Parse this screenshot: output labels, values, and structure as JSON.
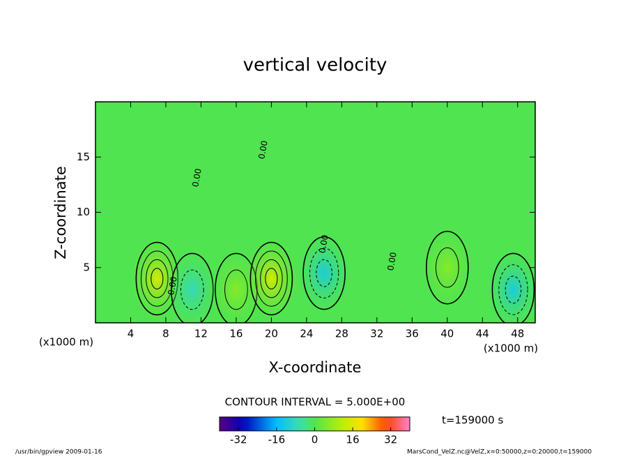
{
  "chart_data": {
    "type": "contour",
    "title": "vertical velocity",
    "x_label": "X-coordinate",
    "y_label": "Z-coordinate",
    "x_unit": "(x1000 m)",
    "y_unit": "(x1000 m)",
    "xlim": [
      0,
      50
    ],
    "xticks": [
      4,
      8,
      12,
      16,
      20,
      24,
      28,
      32,
      36,
      40,
      44,
      48
    ],
    "ylim": [
      0,
      20
    ],
    "yticks": [
      5,
      10,
      15
    ],
    "field": {
      "x": [
        7,
        11,
        16,
        20,
        26,
        40,
        47.5
      ],
      "z": [
        4,
        3,
        3,
        4,
        4.5,
        5,
        3
      ],
      "values": [
        15,
        -8,
        6,
        15,
        -12,
        6,
        -12
      ]
    },
    "contour_label": "0.00",
    "contour_interval_text": "CONTOUR INTERVAL = 5.000E+00",
    "time_text": "t=159000 s",
    "clim": [
      -40,
      40
    ],
    "cticks": [
      -32,
      -16,
      0,
      16,
      32
    ],
    "footer_left": "/usr/bin/gpview  2009-01-16",
    "footer_right": "MarsCond_VelZ.nc@VelZ,x=0:50000,z=0:20000,t=159000"
  }
}
